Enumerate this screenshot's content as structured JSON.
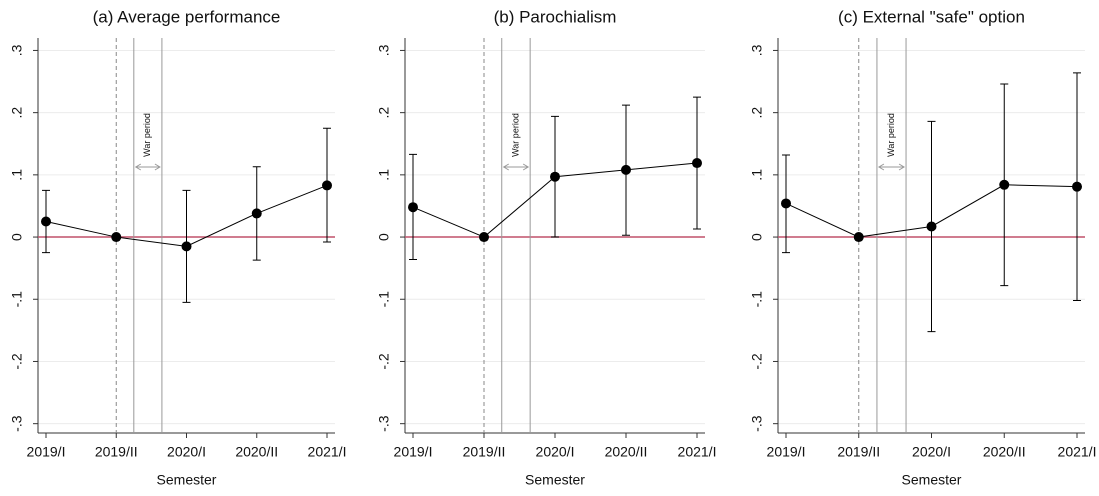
{
  "chart_data": [
    {
      "type": "errorbar",
      "title": "(a) Average performance",
      "x_label": "Semester",
      "categories": [
        "2019/I",
        "2019/II",
        "2020/I",
        "2020/II",
        "2021/I"
      ],
      "values": [
        0.025,
        0,
        -0.015,
        0.038,
        0.083
      ],
      "lower": [
        -0.025,
        0,
        -0.105,
        -0.037,
        -0.008
      ],
      "upper": [
        0.075,
        0,
        0.075,
        0.113,
        0.175
      ],
      "ylim": [
        -0.315,
        0.32
      ],
      "yticks": [
        {
          "value": -0.3,
          "label": "-.3"
        },
        {
          "value": -0.2,
          "label": "-.2"
        },
        {
          "value": -0.1,
          "label": "-.1"
        },
        0,
        {
          "value": 0.1,
          "label": ".1"
        },
        {
          "value": 0.2,
          "label": ".2"
        },
        {
          "value": 0.3,
          "label": ".3"
        }
      ],
      "grid": true,
      "color": "#000000",
      "zero_line_color": "#c0506a",
      "vlines": [
        {
          "x": 1,
          "dashed": true
        },
        {
          "x": 1.25,
          "dashed": false
        },
        {
          "x": 1.65,
          "dashed": false
        }
      ],
      "annotation": "War period"
    },
    {
      "type": "errorbar",
      "title": "(b) Parochialism",
      "x_label": "Semester",
      "categories": [
        "2019/I",
        "2019/II",
        "2020/I",
        "2020/II",
        "2021/I"
      ],
      "values": [
        0.048,
        0,
        0.097,
        0.108,
        0.119
      ],
      "lower": [
        -0.036,
        0,
        0,
        0.003,
        0.013
      ],
      "upper": [
        0.133,
        0,
        0.194,
        0.212,
        0.225
      ],
      "ylim": [
        -0.315,
        0.32
      ],
      "yticks": [
        {
          "value": -0.3,
          "label": "-.3"
        },
        {
          "value": -0.2,
          "label": "-.2"
        },
        {
          "value": -0.1,
          "label": "-.1"
        },
        0,
        {
          "value": 0.1,
          "label": ".1"
        },
        {
          "value": 0.2,
          "label": ".2"
        },
        {
          "value": 0.3,
          "label": ".3"
        }
      ],
      "grid": true,
      "color": "#000000",
      "zero_line_color": "#c0506a",
      "vlines": [
        {
          "x": 1,
          "dashed": true
        },
        {
          "x": 1.25,
          "dashed": false
        },
        {
          "x": 1.65,
          "dashed": false
        }
      ],
      "annotation": "War period"
    },
    {
      "type": "errorbar",
      "title": "(c) External \"safe\" option",
      "x_label": "Semester",
      "categories": [
        "2019/I",
        "2019/II",
        "2020/I",
        "2020/II",
        "2021/I"
      ],
      "values": [
        0.054,
        0,
        0.017,
        0.084,
        0.081
      ],
      "lower": [
        -0.025,
        0,
        -0.152,
        -0.078,
        -0.102
      ],
      "upper": [
        0.132,
        0,
        0.186,
        0.246,
        0.264
      ],
      "ylim": [
        -0.315,
        0.32
      ],
      "yticks": [
        {
          "value": -0.3,
          "label": "-.3"
        },
        {
          "value": -0.2,
          "label": "-.2"
        },
        {
          "value": -0.1,
          "label": "-.1"
        },
        0,
        {
          "value": 0.1,
          "label": ".1"
        },
        {
          "value": 0.2,
          "label": ".2"
        },
        {
          "value": 0.3,
          "label": ".3"
        }
      ],
      "grid": true,
      "color": "#000000",
      "zero_line_color": "#c0506a",
      "vlines": [
        {
          "x": 1,
          "dashed": true
        },
        {
          "x": 1.25,
          "dashed": false
        },
        {
          "x": 1.65,
          "dashed": false
        }
      ],
      "annotation": "War period"
    }
  ]
}
